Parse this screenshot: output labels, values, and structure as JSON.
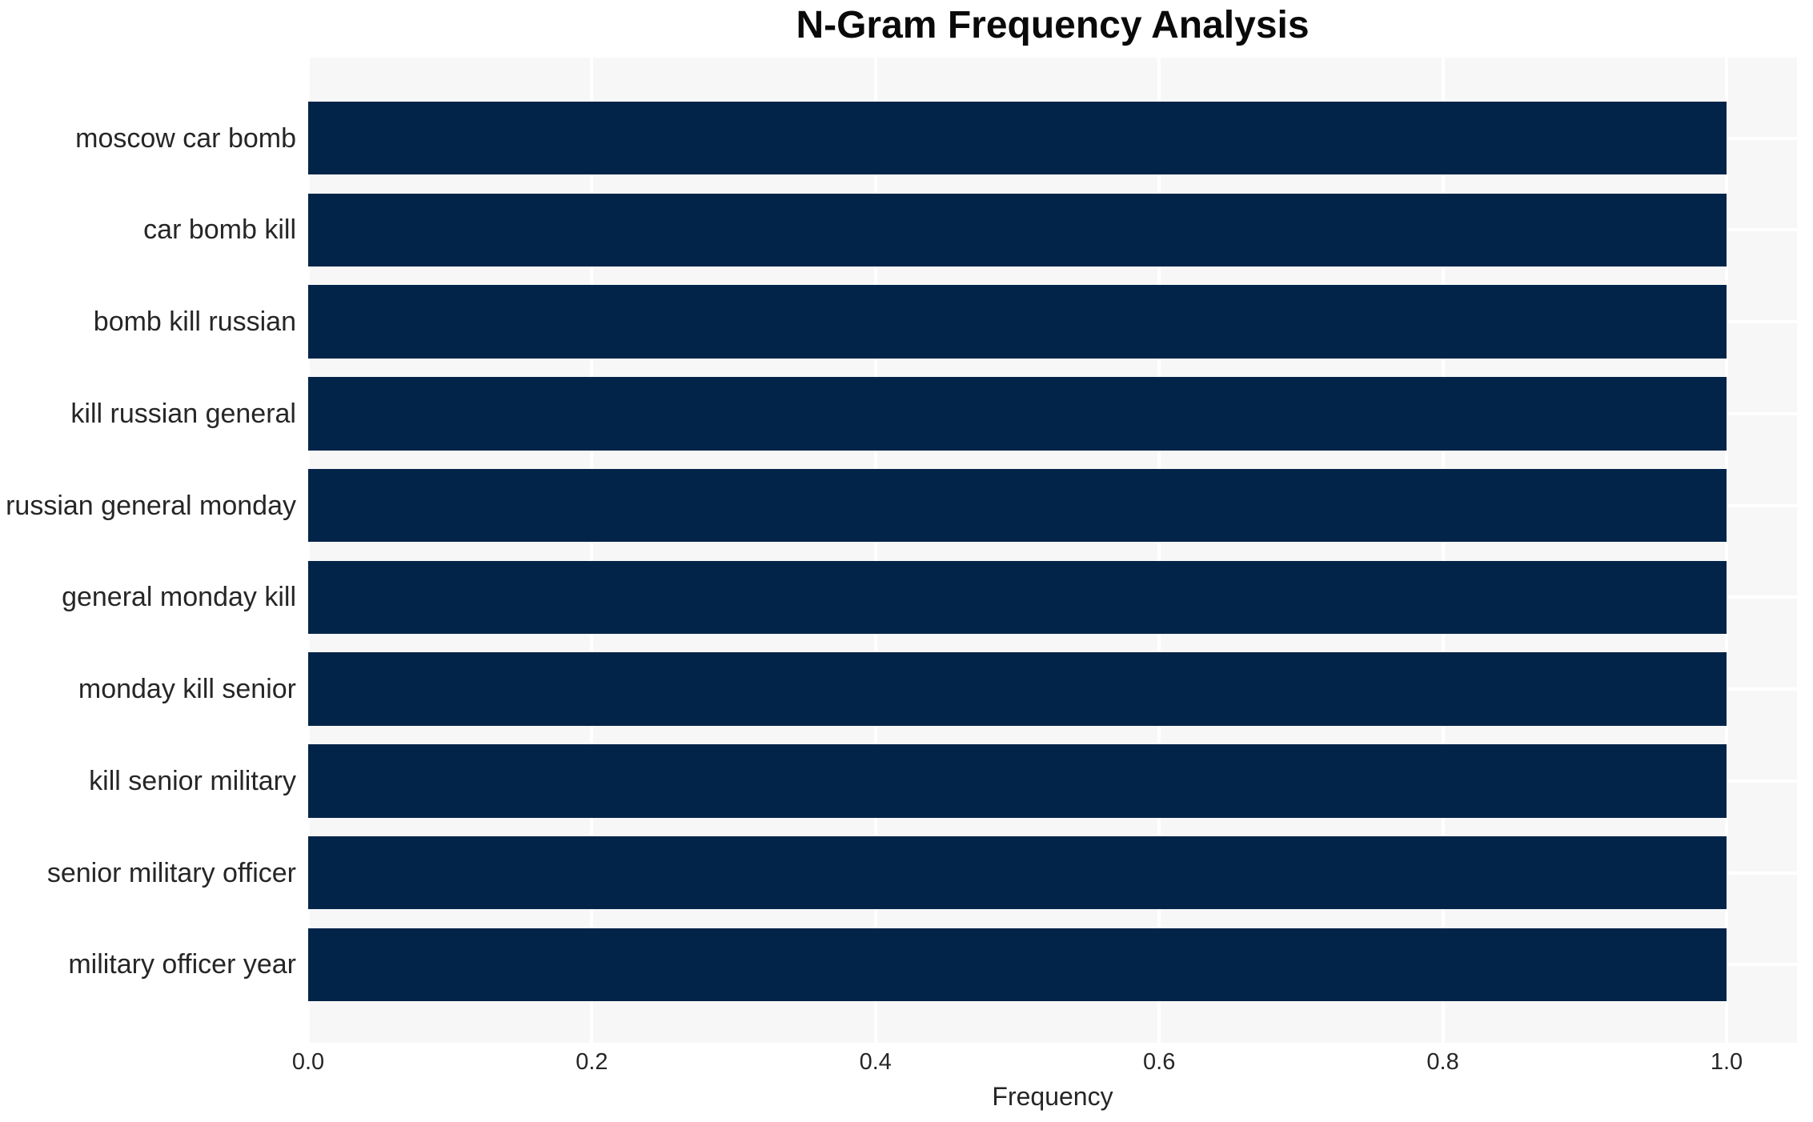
{
  "chart_data": {
    "type": "bar",
    "orientation": "horizontal",
    "title": "N-Gram Frequency Analysis",
    "xlabel": "Frequency",
    "ylabel": "",
    "categories": [
      "moscow car bomb",
      "car bomb kill",
      "bomb kill russian",
      "kill russian general",
      "russian general monday",
      "general monday kill",
      "monday kill senior",
      "kill senior military",
      "senior military officer",
      "military officer year"
    ],
    "values": [
      1.0,
      1.0,
      1.0,
      1.0,
      1.0,
      1.0,
      1.0,
      1.0,
      1.0,
      1.0
    ],
    "x_ticks": [
      0.0,
      0.2,
      0.4,
      0.6,
      0.8,
      1.0
    ],
    "x_tick_labels": [
      "0.0",
      "0.2",
      "0.4",
      "0.6",
      "0.8",
      "1.0"
    ],
    "xlim": [
      0.0,
      1.05
    ],
    "grid": true,
    "grid_color": "#ffffff",
    "legend": false,
    "colors": {
      "bar": "#032449",
      "plot_background": "#f7f7f7",
      "figure_background": "#ffffff",
      "title_text": "#0a0a0a",
      "axis_text": "#262626"
    }
  }
}
